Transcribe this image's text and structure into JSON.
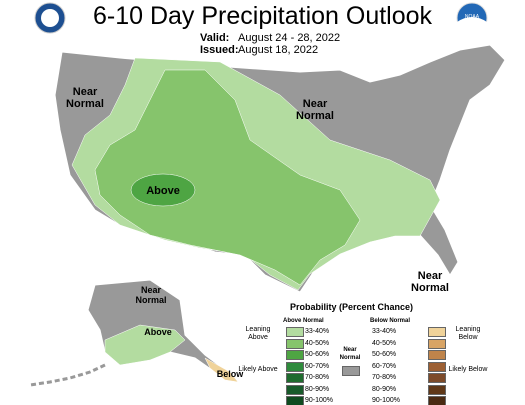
{
  "header": {
    "title": "6-10 Day Precipitation Outlook",
    "valid_label": "Valid:",
    "valid_dates": "August 24 - 28, 2022",
    "issued_label": "Issued:",
    "issued_dates": "August 18, 2022",
    "logo_text": "NOAA"
  },
  "map_labels": {
    "west": "Near Normal",
    "northeast": "Near Normal",
    "center": "Above",
    "southeast": "Near Normal",
    "alaska_north": "Near Normal",
    "alaska_south": "Above",
    "alaska_panhandle": "Below"
  },
  "legend": {
    "title": "Probability (Percent Chance)",
    "above_header": "Above Normal",
    "below_header": "Below Normal",
    "above_ranges": [
      "33-40%",
      "40-50%",
      "50-60%",
      "60-70%",
      "70-80%",
      "80-90%",
      "90-100%"
    ],
    "below_ranges": [
      "33-40%",
      "40-50%",
      "50-60%",
      "60-70%",
      "70-80%",
      "80-90%",
      "90-100%"
    ],
    "leaning_above": "Leaning Above",
    "likely_above": "Likely Above",
    "near_normal": "Near Normal",
    "leaning_below": "Leaning Below",
    "likely_below": "Likely Below"
  }
}
